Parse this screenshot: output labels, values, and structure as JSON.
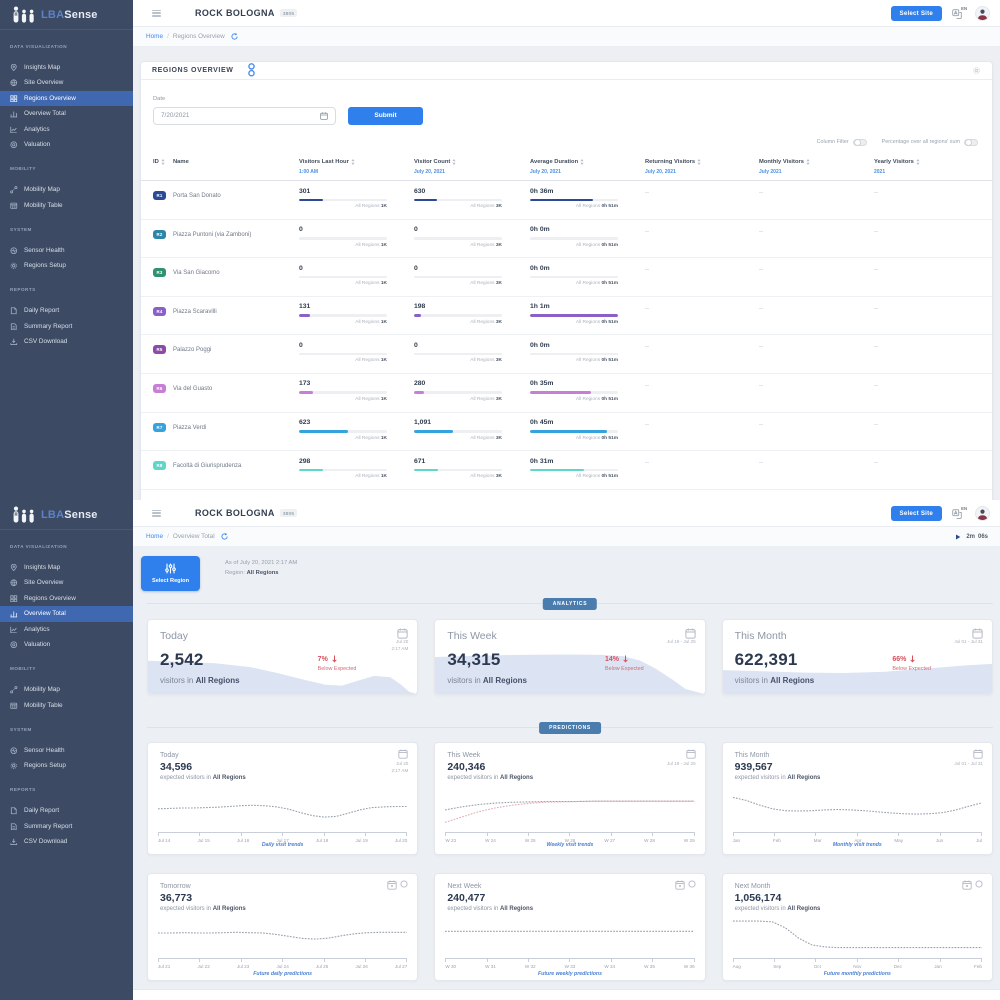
{
  "brand": {
    "logo_part1": "LBA",
    "logo_part2": "Sense",
    "logo_icon": "people-icon"
  },
  "header": {
    "site_name": "ROCK BOLOGNA",
    "site_badge": "3805",
    "select_site_label": "Select Site",
    "language": "EN"
  },
  "sidebar": {
    "sections": [
      {
        "label": "DATA VISUALIZATION",
        "items": [
          {
            "label": "Insights Map",
            "icon": "insights-map-icon"
          },
          {
            "label": "Site Overview",
            "icon": "site-overview-icon"
          },
          {
            "label": "Regions Overview",
            "icon": "regions-overview-icon"
          },
          {
            "label": "Overview Total",
            "icon": "overview-total-icon"
          },
          {
            "label": "Analytics",
            "icon": "analytics-icon"
          },
          {
            "label": "Valuation",
            "icon": "valuation-icon"
          }
        ]
      },
      {
        "label": "MOBILITY",
        "items": [
          {
            "label": "Mobility Map",
            "icon": "mobility-map-icon"
          },
          {
            "label": "Mobility Table",
            "icon": "mobility-table-icon"
          }
        ]
      },
      {
        "label": "SYSTEM",
        "items": [
          {
            "label": "Sensor Health",
            "icon": "sensor-health-icon"
          },
          {
            "label": "Regions Setup",
            "icon": "regions-setup-icon"
          }
        ]
      },
      {
        "label": "REPORTS",
        "items": [
          {
            "label": "Daily Report",
            "icon": "daily-report-icon"
          },
          {
            "label": "Summary Report",
            "icon": "summary-report-icon"
          },
          {
            "label": "CSV Download",
            "icon": "csv-download-icon"
          }
        ]
      }
    ]
  },
  "screens": [
    {
      "breadcrumb_home": "Home",
      "breadcrumb_sep": "/",
      "breadcrumb_current": "Regions Overview",
      "active_nav": "Regions Overview"
    },
    {
      "breadcrumb_home": "Home",
      "breadcrumb_sep": "/",
      "breadcrumb_current": "Overview Total",
      "active_nav": "Overview Total",
      "timer_minutes": "2m",
      "timer_seconds": "06s"
    }
  ],
  "regions_card": {
    "title": "REGIONS OVERVIEW",
    "date_label": "Date",
    "date_value": "7/20/2021",
    "submit_label": "Submit",
    "toggles": [
      {
        "label": "Column Filter",
        "on": false
      },
      {
        "label": "Percentage over all regions' sum",
        "on": false
      }
    ],
    "columns": [
      {
        "label": "ID",
        "sub": "",
        "sortable": true
      },
      {
        "label": "Name",
        "sub": "",
        "sortable": false
      },
      {
        "label": "Visitors Last Hour",
        "sub": "1:00 AM",
        "sortable": true
      },
      {
        "label": "Visitor Count",
        "sub": "July 20, 2021",
        "sortable": true
      },
      {
        "label": "Average Duration",
        "sub": "July 20, 2021",
        "sortable": true
      },
      {
        "label": "Returning Visitors",
        "sub": "July 20, 2021",
        "sortable": true
      },
      {
        "label": "Monthly Visitors",
        "sub": "July 2021",
        "sortable": true
      },
      {
        "label": "Yearly Visitors",
        "sub": "2021",
        "sortable": true
      }
    ],
    "all_regions_label": "All Regions",
    "totals": {
      "last_hour": "1K",
      "count": "3K",
      "duration": "0h 51m"
    },
    "rows": [
      {
        "id": "R1",
        "color": "#2b4a96",
        "name": "Porta San Donato",
        "last_hour": "301",
        "last_hour_pct": 27,
        "count": "630",
        "count_pct": 26,
        "duration": "0h 36m",
        "duration_pct": 72,
        "returning": "--",
        "monthly": "--",
        "yearly": "--"
      },
      {
        "id": "R2",
        "color": "#2e85a8",
        "name": "Piazza Puntoni (via Zamboni)",
        "last_hour": "0",
        "last_hour_pct": 0,
        "count": "0",
        "count_pct": 0,
        "duration": "0h 0m",
        "duration_pct": 0,
        "returning": "--",
        "monthly": "--",
        "yearly": "--"
      },
      {
        "id": "R3",
        "color": "#2f9072",
        "name": "Via San Giacomo",
        "last_hour": "0",
        "last_hour_pct": 0,
        "count": "0",
        "count_pct": 0,
        "duration": "0h 0m",
        "duration_pct": 0,
        "returning": "--",
        "monthly": "--",
        "yearly": "--"
      },
      {
        "id": "R4",
        "color": "#8a5fc8",
        "name": "Piazza Scaravilli",
        "last_hour": "131",
        "last_hour_pct": 12,
        "count": "198",
        "count_pct": 8,
        "duration": "1h 1m",
        "duration_pct": 100,
        "returning": "--",
        "monthly": "--",
        "yearly": "--"
      },
      {
        "id": "R5",
        "color": "#8c4ba6",
        "name": "Palazzo Poggi",
        "last_hour": "0",
        "last_hour_pct": 0,
        "count": "0",
        "count_pct": 0,
        "duration": "0h 0m",
        "duration_pct": 0,
        "returning": "--",
        "monthly": "--",
        "yearly": "--"
      },
      {
        "id": "R6",
        "color": "#c77fd6",
        "name": "Via del Guasto",
        "last_hour": "173",
        "last_hour_pct": 16,
        "count": "280",
        "count_pct": 11,
        "duration": "0h 35m",
        "duration_pct": 69,
        "returning": "--",
        "monthly": "--",
        "yearly": "--"
      },
      {
        "id": "R7",
        "color": "#35a3dd",
        "name": "Piazza Verdi",
        "last_hour": "623",
        "last_hour_pct": 56,
        "count": "1,091",
        "count_pct": 44,
        "duration": "0h 45m",
        "duration_pct": 88,
        "returning": "--",
        "monthly": "--",
        "yearly": "--"
      },
      {
        "id": "R8",
        "color": "#5fd6c8",
        "name": "Facoltà di Giurisprudenza",
        "last_hour": "298",
        "last_hour_pct": 27,
        "count": "671",
        "count_pct": 27,
        "duration": "0h 31m",
        "duration_pct": 61,
        "returning": "--",
        "monthly": "--",
        "yearly": "--"
      }
    ]
  },
  "overview": {
    "select_region_label": "Select Region",
    "as_of": "As of July 20, 2021 2:17 AM",
    "region_prefix": "Region:",
    "region_value": "All Regions",
    "analytics_section_label": "ANALYTICS",
    "predictions_section_label": "PREDICTIONS",
    "analytics_cards": [
      {
        "title": "Today",
        "value": "2,542",
        "unit_prefix": "visitors in",
        "unit_bold": "All Regions",
        "delta": "7%",
        "delta_note": "Below Expected",
        "date_line1": "Jul 20",
        "date_line2": "2:17 AM",
        "wave": {
          "fill": "#dce4f3",
          "points": [
            [
              0,
              0.21
            ],
            [
              0.12,
              0.23
            ],
            [
              0.25,
              0.27
            ],
            [
              0.38,
              0.36
            ],
            [
              0.48,
              0.5
            ],
            [
              0.58,
              0.66
            ],
            [
              0.66,
              0.78
            ],
            [
              0.72,
              0.8
            ],
            [
              0.78,
              0.68
            ],
            [
              0.84,
              0.57
            ],
            [
              0.9,
              0.6
            ],
            [
              0.94,
              0.78
            ],
            [
              0.97,
              0.95
            ],
            [
              1,
              1
            ]
          ]
        }
      },
      {
        "title": "This Week",
        "value": "34,315",
        "unit_prefix": "visitors in",
        "unit_bold": "All Regions",
        "delta": "14%",
        "delta_note": "Below Expected",
        "date_line1": "Jul 19 - Jul 25",
        "date_line2": "",
        "wave": {
          "fill": "#dce4f3",
          "points": [
            [
              0,
              0.12
            ],
            [
              0.15,
              0.09
            ],
            [
              0.3,
              0.07
            ],
            [
              0.5,
              0.06
            ],
            [
              0.62,
              0.07
            ],
            [
              0.7,
              0.1
            ],
            [
              0.76,
              0.2
            ],
            [
              0.82,
              0.4
            ],
            [
              0.88,
              0.65
            ],
            [
              0.93,
              0.88
            ],
            [
              1,
              1
            ]
          ]
        }
      },
      {
        "title": "This Month",
        "value": "622,391",
        "unit_prefix": "visitors in",
        "unit_bold": "All Regions",
        "delta": "66%",
        "delta_note": "Below Expected",
        "date_line1": "Jul 01 - Jul 31",
        "date_line2": "",
        "wave": {
          "fill": "#dce4f3",
          "points": [
            [
              0,
              0.43
            ],
            [
              0.15,
              0.46
            ],
            [
              0.3,
              0.49
            ],
            [
              0.45,
              0.5
            ],
            [
              0.6,
              0.47
            ],
            [
              0.75,
              0.4
            ],
            [
              0.9,
              0.32
            ],
            [
              1,
              0.28
            ]
          ]
        }
      }
    ],
    "prediction_rows": [
      [
        {
          "title": "Today",
          "value": "34,596",
          "sub_prefix": "expected visitors in",
          "sub_bold": "All Regions",
          "caption": "Daily visit trends",
          "date_line1": "Jul 20",
          "date_line2": "2:17 AM",
          "icons": [
            "calendar-icon"
          ],
          "x_labels": [
            "Jul 14",
            "Jul 15",
            "Jul 16",
            "Jul 17",
            "Jul 18",
            "Jul 19",
            "Jul 20"
          ],
          "chart": {
            "series": [
              {
                "color": "#98a1ac",
                "points": [
                  0.52,
                  0.51,
                  0.5,
                  0.5,
                  0.49,
                  0.48,
                  0.46,
                  0.44,
                  0.43,
                  0.44,
                  0.47,
                  0.53,
                  0.62,
                  0.7,
                  0.74,
                  0.72,
                  0.64,
                  0.55,
                  0.49,
                  0.47,
                  0.46,
                  0.46
                ]
              }
            ]
          }
        },
        {
          "title": "This Week",
          "value": "240,346",
          "sub_prefix": "expected visitors in",
          "sub_bold": "All Regions",
          "caption": "Weekly visit trends",
          "date_line1": "Jul 19 - Jul 25",
          "date_line2": "",
          "icons": [
            "calendar-icon"
          ],
          "x_labels": [
            "W 23",
            "W 24",
            "W 25",
            "W 26",
            "W 27",
            "W 28",
            "W 29"
          ],
          "chart": {
            "series": [
              {
                "color": "#98a1ac",
                "points": [
                  0.55,
                  0.47,
                  0.41,
                  0.37,
                  0.35,
                  0.34,
                  0.33,
                  0.33,
                  0.33,
                  0.32,
                  0.32,
                  0.32,
                  0.32,
                  0.32,
                  0.32,
                  0.32
                ]
              },
              {
                "color": "#e6abb8",
                "points": [
                  0.88,
                  0.74,
                  0.6,
                  0.5,
                  0.43,
                  0.38,
                  0.35,
                  0.34,
                  0.33,
                  0.32,
                  0.32,
                  0.32,
                  0.32,
                  0.32,
                  0.32,
                  0.32
                ]
              }
            ]
          }
        },
        {
          "title": "This Month",
          "value": "939,567",
          "sub_prefix": "expected visitors in",
          "sub_bold": "All Regions",
          "caption": "Monthly visit trends",
          "date_line1": "Jul 01 - Jul 31",
          "date_line2": "",
          "icons": [
            "calendar-icon"
          ],
          "x_labels": [
            "Jan",
            "Feb",
            "Mar",
            "Apr",
            "May",
            "Jun",
            "Jul"
          ],
          "chart": {
            "series": [
              {
                "color": "#98a1ac",
                "points": [
                  0.22,
                  0.3,
                  0.42,
                  0.52,
                  0.57,
                  0.58,
                  0.57,
                  0.55,
                  0.54,
                  0.55,
                  0.57,
                  0.6,
                  0.63,
                  0.65,
                  0.66,
                  0.65,
                  0.62,
                  0.55,
                  0.45,
                  0.36
                ]
              }
            ]
          }
        }
      ],
      [
        {
          "title": "Tomorrow",
          "value": "36,773",
          "sub_prefix": "expected visitors in",
          "sub_bold": "All Regions",
          "caption": "Future daily predictions",
          "date_line1": "",
          "date_line2": "",
          "icons": [
            "calendar-dot-icon",
            "circle-icon"
          ],
          "x_labels": [
            "Jul 21",
            "Jul 22",
            "Jul 23",
            "Jul 24",
            "Jul 25",
            "Jul 26",
            "Jul 27"
          ],
          "chart": {
            "series": [
              {
                "color": "#98a1ac",
                "points": [
                  0.5,
                  0.5,
                  0.49,
                  0.5,
                  0.5,
                  0.49,
                  0.48,
                  0.49,
                  0.5,
                  0.54,
                  0.6,
                  0.66,
                  0.68,
                  0.65,
                  0.58,
                  0.52,
                  0.49,
                  0.48,
                  0.48,
                  0.48
                ]
              }
            ]
          }
        },
        {
          "title": "Next Week",
          "value": "240,477",
          "sub_prefix": "expected visitors in",
          "sub_bold": "All Regions",
          "caption": "Future weekly predictions",
          "date_line1": "",
          "date_line2": "",
          "icons": [
            "calendar-dot-icon",
            "circle-icon"
          ],
          "x_labels": [
            "W 30",
            "W 31",
            "W 32",
            "W 33",
            "W 34",
            "W 35",
            "W 36"
          ],
          "chart": {
            "series": [
              {
                "color": "#98a1ac",
                "points": [
                  0.45,
                  0.45,
                  0.45,
                  0.45,
                  0.45,
                  0.45,
                  0.45,
                  0.45,
                  0.45,
                  0.45,
                  0.45,
                  0.45,
                  0.45,
                  0.45,
                  0.45,
                  0.45
                ]
              }
            ]
          }
        },
        {
          "title": "Next Month",
          "value": "1,056,174",
          "sub_prefix": "expected visitors in",
          "sub_bold": "All Regions",
          "caption": "Future monthly predictions",
          "date_line1": "",
          "date_line2": "",
          "icons": [
            "calendar-dot-icon",
            "circle-icon"
          ],
          "x_labels": [
            "Aug",
            "Sep",
            "Oct",
            "Nov",
            "Dec",
            "Jan",
            "Feb"
          ],
          "chart": {
            "series": [
              {
                "color": "#98a1ac",
                "points": [
                  0.15,
                  0.15,
                  0.15,
                  0.17,
                  0.35,
                  0.65,
                  0.85,
                  0.91,
                  0.93,
                  0.93,
                  0.93,
                  0.93,
                  0.93,
                  0.93,
                  0.93,
                  0.93,
                  0.93,
                  0.93,
                  0.93,
                  0.93
                ]
              }
            ]
          }
        }
      ]
    ]
  }
}
